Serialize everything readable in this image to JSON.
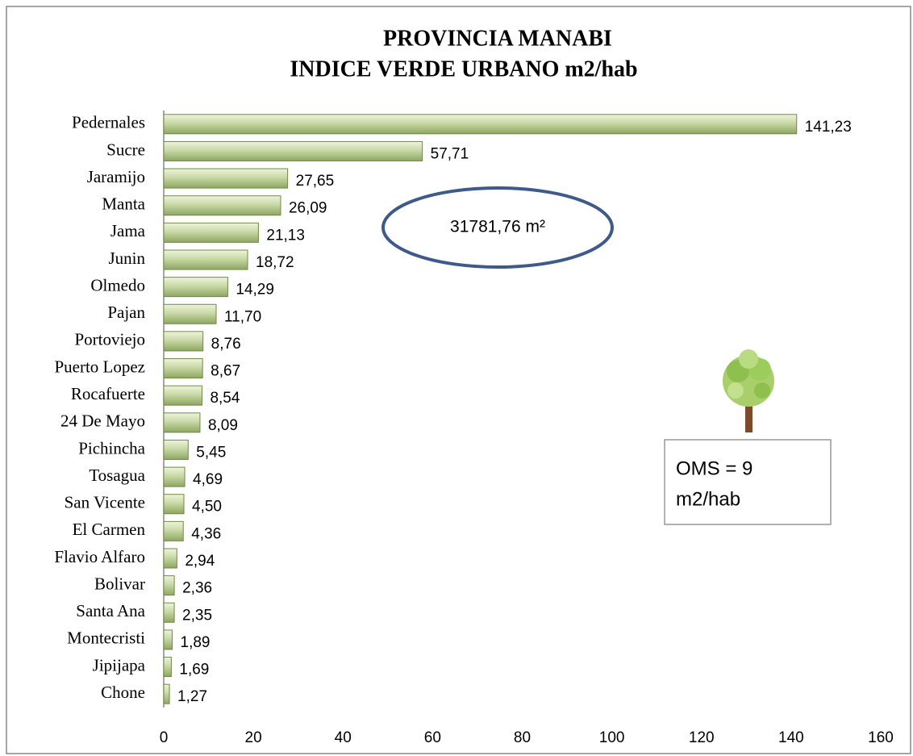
{
  "chart_data": {
    "type": "barh",
    "title": [
      "PROVINCIA  MANABI",
      "INDICE VERDE URBANO m2/hab"
    ],
    "categories": [
      "Pedernales",
      "Sucre",
      "Jaramijo",
      "Manta",
      "Jama",
      "Junin",
      "Olmedo",
      "Pajan",
      "Portoviejo",
      "Puerto Lopez",
      "Rocafuerte",
      "24 De Mayo",
      "Pichincha",
      "Tosagua",
      "San Vicente",
      "El Carmen",
      "Flavio Alfaro",
      "Bolivar",
      "Santa Ana",
      "Montecristi",
      "Jipijapa",
      "Chone"
    ],
    "values": [
      141.23,
      57.71,
      27.65,
      26.09,
      21.13,
      18.72,
      14.29,
      11.7,
      8.76,
      8.67,
      8.54,
      8.09,
      5.45,
      4.69,
      4.5,
      4.36,
      2.94,
      2.36,
      2.35,
      1.89,
      1.69,
      1.27
    ],
    "value_labels": [
      "141,23",
      "57,71",
      "27,65",
      "26,09",
      "21,13",
      "18,72",
      "14,29",
      "11,70",
      "8,76",
      "8,67",
      "8,54",
      "8,09",
      "5,45",
      "4,69",
      "4,50",
      "4,36",
      "2,94",
      "2,36",
      "2,35",
      "1,89",
      "1,69",
      "1,27"
    ],
    "color": "#b5c98c",
    "xlim": [
      0,
      160
    ],
    "xticks": [
      0,
      20,
      40,
      60,
      80,
      100,
      120,
      140,
      160
    ],
    "annotations": {
      "ellipse": "31781,76 m²",
      "box": [
        "OMS = 9",
        "m2/hab"
      ]
    }
  }
}
